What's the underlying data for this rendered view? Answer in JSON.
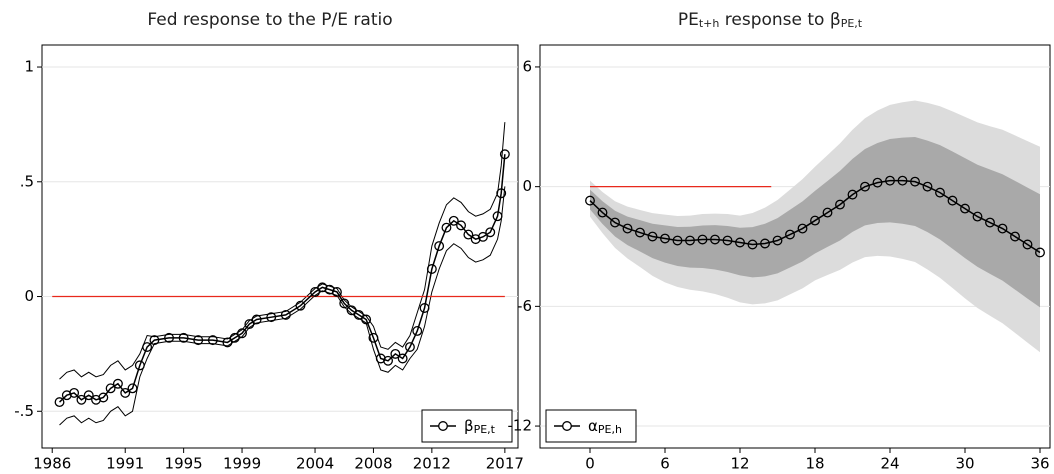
{
  "chart_data": [
    {
      "type": "line",
      "title": "Fed response to the P/E ratio",
      "xlim": [
        1985.3,
        2017.9
      ],
      "ylim": [
        -0.66,
        1.096
      ],
      "xticks": [
        1986,
        1991,
        1995,
        1999,
        2004,
        2008,
        2012,
        2017
      ],
      "yticks": [
        1,
        {
          "value": 0.5,
          "label": ".5"
        },
        0,
        {
          "value": -0.5,
          "label": "-.5"
        }
      ],
      "grid": true,
      "legend": "lower right",
      "hline": {
        "y": 0,
        "x": [
          1986,
          2017
        ],
        "color": "#e8291c"
      },
      "x": [
        1986.5,
        1987,
        1987.5,
        1988,
        1988.5,
        1989,
        1989.5,
        1990,
        1990.5,
        1991,
        1991.5,
        1992,
        1992.5,
        1993,
        1994,
        1995,
        1996,
        1997,
        1998,
        1998.5,
        1999,
        1999.5,
        2000,
        2001,
        2002,
        2003,
        2004,
        2004.5,
        2005,
        2005.5,
        2006,
        2006.5,
        2007,
        2007.5,
        2008,
        2008.5,
        2009,
        2009.5,
        2010,
        2010.5,
        2011,
        2011.5,
        2012,
        2012.5,
        2013,
        2013.5,
        2014,
        2014.5,
        2015,
        2015.5,
        2016,
        2016.5,
        2016.75,
        2017
      ],
      "series": [
        {
          "name": "β",
          "subscript": "PE,t",
          "color": "#000000",
          "values": [
            -0.46,
            -0.43,
            -0.42,
            -0.45,
            -0.43,
            -0.45,
            -0.44,
            -0.4,
            -0.38,
            -0.42,
            -0.4,
            -0.3,
            -0.22,
            -0.19,
            -0.18,
            -0.18,
            -0.19,
            -0.19,
            -0.2,
            -0.18,
            -0.16,
            -0.12,
            -0.1,
            -0.09,
            -0.08,
            -0.04,
            0.02,
            0.04,
            0.03,
            0.02,
            -0.03,
            -0.06,
            -0.08,
            -0.1,
            -0.18,
            -0.27,
            -0.28,
            -0.25,
            -0.27,
            -0.22,
            -0.15,
            -0.05,
            0.12,
            0.22,
            0.3,
            0.33,
            0.31,
            0.27,
            0.25,
            0.26,
            0.28,
            0.35,
            0.45,
            0.62
          ]
        }
      ],
      "bands": [
        {
          "style": "lines",
          "color": "#000000",
          "upper": [
            -0.36,
            -0.33,
            -0.32,
            -0.35,
            -0.33,
            -0.35,
            -0.34,
            -0.3,
            -0.28,
            -0.32,
            -0.3,
            -0.25,
            -0.17,
            -0.175,
            -0.165,
            -0.165,
            -0.175,
            -0.175,
            -0.185,
            -0.165,
            -0.145,
            -0.105,
            -0.085,
            -0.075,
            -0.065,
            -0.025,
            0.035,
            0.055,
            0.045,
            0.035,
            -0.015,
            -0.045,
            -0.065,
            -0.085,
            -0.13,
            -0.22,
            -0.23,
            -0.2,
            -0.22,
            -0.17,
            -0.07,
            0.03,
            0.22,
            0.32,
            0.4,
            0.43,
            0.41,
            0.37,
            0.35,
            0.36,
            0.38,
            0.45,
            0.57,
            0.76
          ],
          "lower": [
            -0.56,
            -0.53,
            -0.52,
            -0.55,
            -0.53,
            -0.55,
            -0.54,
            -0.5,
            -0.48,
            -0.52,
            -0.5,
            -0.35,
            -0.27,
            -0.205,
            -0.195,
            -0.195,
            -0.205,
            -0.205,
            -0.215,
            -0.195,
            -0.175,
            -0.135,
            -0.115,
            -0.105,
            -0.095,
            -0.055,
            0.005,
            0.025,
            0.015,
            0.005,
            -0.045,
            -0.075,
            -0.095,
            -0.115,
            -0.23,
            -0.32,
            -0.33,
            -0.3,
            -0.32,
            -0.27,
            -0.23,
            -0.13,
            0.02,
            0.12,
            0.2,
            0.23,
            0.21,
            0.17,
            0.15,
            0.16,
            0.18,
            0.25,
            0.33,
            0.48
          ]
        }
      ]
    },
    {
      "type": "line",
      "title": [
        {
          "text": "PE"
        },
        {
          "sub": "t+h"
        },
        {
          "text": " response to β"
        },
        {
          "sub": "PE,t"
        }
      ],
      "xlim": [
        -4,
        36.8
      ],
      "ylim": [
        -13.1,
        7.1
      ],
      "xticks": [
        0,
        6,
        12,
        18,
        24,
        30,
        36
      ],
      "yticks": [
        6,
        0,
        -6,
        -12
      ],
      "grid": true,
      "legend": "lower left",
      "hline": {
        "y": 0,
        "x": [
          0,
          14.5
        ],
        "color": "#e8291c"
      },
      "x": [
        0,
        1,
        2,
        3,
        4,
        5,
        6,
        7,
        8,
        9,
        10,
        11,
        12,
        13,
        14,
        15,
        16,
        17,
        18,
        19,
        20,
        21,
        22,
        23,
        24,
        25,
        26,
        27,
        28,
        29,
        30,
        31,
        32,
        33,
        34,
        35,
        36
      ],
      "series": [
        {
          "name": "α",
          "subscript": "PE,h",
          "color": "#000000",
          "values": [
            -0.7,
            -1.3,
            -1.8,
            -2.1,
            -2.3,
            -2.5,
            -2.6,
            -2.7,
            -2.7,
            -2.65,
            -2.65,
            -2.7,
            -2.8,
            -2.9,
            -2.85,
            -2.7,
            -2.4,
            -2.1,
            -1.7,
            -1.3,
            -0.9,
            -0.4,
            0.0,
            0.2,
            0.3,
            0.3,
            0.25,
            0.0,
            -0.3,
            -0.7,
            -1.1,
            -1.5,
            -1.8,
            -2.1,
            -2.5,
            -2.9,
            -3.3
          ]
        }
      ],
      "bands": [
        {
          "style": "fill",
          "color": "#dcdcdc",
          "upper": [
            0.3,
            -0.27,
            -0.73,
            -1.0,
            -1.17,
            -1.33,
            -1.4,
            -1.47,
            -1.45,
            -1.37,
            -1.35,
            -1.37,
            -1.45,
            -1.32,
            -1.05,
            -0.67,
            -0.15,
            0.38,
            1.0,
            1.58,
            2.17,
            2.85,
            3.43,
            3.82,
            4.1,
            4.23,
            4.32,
            4.2,
            4.03,
            3.77,
            3.5,
            3.22,
            3.03,
            2.85,
            2.57,
            2.28,
            2.0
          ],
          "lower": [
            -1.5,
            -2.33,
            -3.07,
            -3.6,
            -4.03,
            -4.47,
            -4.8,
            -5.03,
            -5.17,
            -5.25,
            -5.38,
            -5.57,
            -5.8,
            -5.9,
            -5.85,
            -5.7,
            -5.4,
            -5.1,
            -4.7,
            -4.43,
            -4.17,
            -3.8,
            -3.53,
            -3.47,
            -3.5,
            -3.62,
            -3.78,
            -4.15,
            -4.57,
            -5.08,
            -5.6,
            -6.08,
            -6.47,
            -6.85,
            -7.33,
            -7.82,
            -8.3
          ]
        },
        {
          "style": "fill",
          "color": "#a9a9a9",
          "upper": [
            -0.15,
            -0.73,
            -1.21,
            -1.5,
            -1.68,
            -1.86,
            -1.94,
            -2.02,
            -2.01,
            -1.95,
            -1.93,
            -1.97,
            -2.06,
            -2.03,
            -1.86,
            -1.58,
            -1.16,
            -0.74,
            -0.21,
            0.28,
            0.79,
            1.39,
            1.89,
            2.19,
            2.39,
            2.46,
            2.49,
            2.31,
            2.08,
            1.76,
            1.43,
            1.1,
            0.86,
            0.62,
            0.29,
            -0.05,
            -0.38
          ],
          "lower": [
            -1.14,
            -1.87,
            -2.5,
            -2.93,
            -3.25,
            -3.58,
            -3.81,
            -3.98,
            -4.06,
            -4.08,
            -4.15,
            -4.28,
            -4.45,
            -4.55,
            -4.5,
            -4.35,
            -4.05,
            -3.75,
            -3.35,
            -3.02,
            -2.7,
            -2.27,
            -1.94,
            -1.82,
            -1.79,
            -1.86,
            -1.97,
            -2.28,
            -2.65,
            -3.11,
            -3.58,
            -4.02,
            -4.37,
            -4.71,
            -5.16,
            -5.61,
            -6.05
          ]
        }
      ]
    }
  ]
}
